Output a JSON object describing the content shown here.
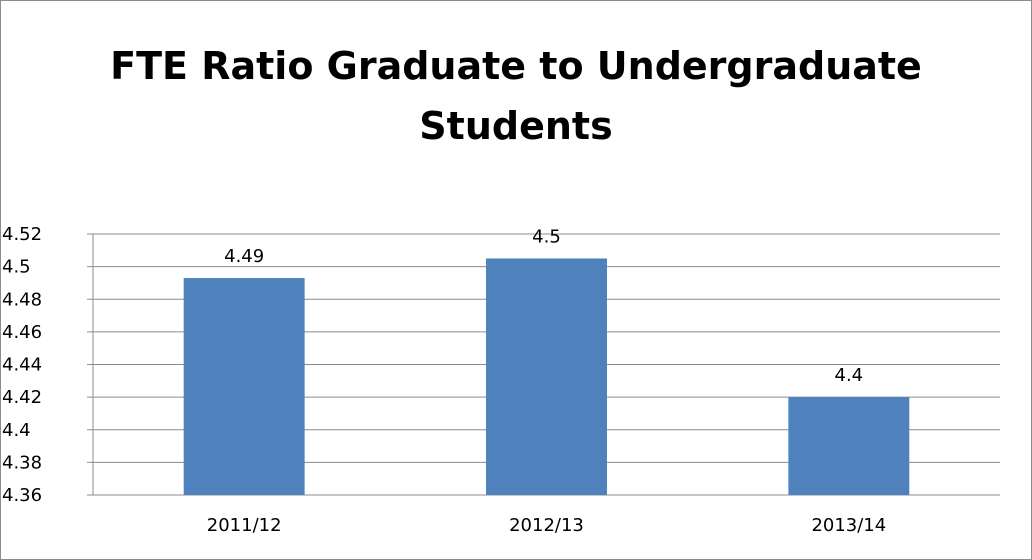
{
  "chart_data": {
    "type": "bar",
    "title_lines": [
      "FTE Ratio Graduate to Undergraduate",
      "Students"
    ],
    "categories": [
      "2011/12",
      "2012/13",
      "2013/14"
    ],
    "values": [
      4.493,
      4.505,
      4.42
    ],
    "data_labels": [
      "4.49",
      "4.5",
      "4.4"
    ],
    "ylim": [
      4.36,
      4.52
    ],
    "yticks": [
      "4.52",
      "4.5",
      "4.48",
      "4.46",
      "4.44",
      "4.42",
      "4.4",
      "4.38",
      "4.36"
    ],
    "xlabel": "",
    "ylabel": "",
    "grid": true,
    "legend": "none",
    "bar_color": "#4f81bd",
    "grid_color": "#8c8c8c"
  }
}
